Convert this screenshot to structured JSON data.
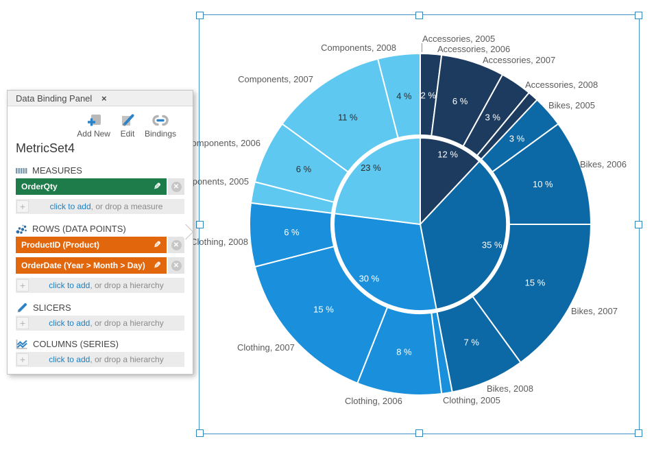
{
  "panel": {
    "title": "Data Binding Panel",
    "close_glyph": "×",
    "toolbar": [
      {
        "label": "Add New",
        "icon": "add-new-icon"
      },
      {
        "label": "Edit",
        "icon": "edit-icon"
      },
      {
        "label": "Bindings",
        "icon": "bindings-icon"
      }
    ],
    "metric_set": "MetricSet4",
    "sections": {
      "measures": {
        "label": "MEASURES",
        "icon": "measures-icon",
        "chips": [
          {
            "label": "OrderQty"
          }
        ],
        "add": {
          "link": "click to add",
          "rest": ", or drop a measure"
        }
      },
      "rows": {
        "label": "ROWS (DATA POINTS)",
        "icon": "scatter-dots-icon",
        "chips": [
          {
            "label": "ProductID (Product)"
          },
          {
            "label": "OrderDate (Year > Month > Day)"
          }
        ],
        "add": {
          "link": "click to add",
          "rest": ", or drop a hierarchy"
        }
      },
      "slicers": {
        "label": "SLICERS",
        "icon": "pencil-slicer-icon",
        "add": {
          "link": "click to add",
          "rest": ", or drop a hierarchy"
        }
      },
      "columns": {
        "label": "COLUMNS (SERIES)",
        "icon": "zigzag-series-icon",
        "add": {
          "link": "click to add",
          "rest": ", or drop a hierarchy"
        }
      }
    },
    "colors": {
      "measure_chip": "#1e7c4a",
      "hierarchy_chip": "#e2660c",
      "link_blue": "#1b7ec2"
    }
  },
  "chart_data": {
    "type": "pie",
    "subtype": "two-ring donut (category inner ring, category-by-year outer ring)",
    "legend": "none",
    "colors": {
      "Accessories": "#1c3b5e",
      "Bikes": "#0d68a6",
      "Clothing": "#1a90dd",
      "Components": "#5ec8f0"
    },
    "rings": {
      "inner": {
        "slices": [
          {
            "label": "Accessories",
            "pct": 12,
            "pct_label": "12 %",
            "color": "#1c3b5e",
            "text_color": "#ffffff"
          },
          {
            "label": "Bikes",
            "pct": 35,
            "pct_label": "35 %",
            "color": "#0d68a6",
            "text_color": "#ffffff"
          },
          {
            "label": "Clothing",
            "pct": 30,
            "pct_label": "30 %",
            "color": "#1a90dd",
            "text_color": "#ffffff"
          },
          {
            "label": "Components",
            "pct": 23,
            "pct_label": "23 %",
            "color": "#5ec8f0",
            "text_color": "#2d2d2d"
          }
        ]
      },
      "outer": {
        "slices": [
          {
            "label": "Accessories, 2005",
            "value": 2,
            "pct_label": "2 %",
            "color": "#1c3b5e",
            "text_color": "#ffffff"
          },
          {
            "label": "Accessories, 2006",
            "value": 6,
            "pct_label": "6 %",
            "color": "#1c3b5e",
            "text_color": "#ffffff"
          },
          {
            "label": "Accessories, 2007",
            "value": 3,
            "pct_label": "3 %",
            "color": "#1c3b5e",
            "text_color": "#ffffff"
          },
          {
            "label": "Accessories, 2008",
            "value": 1,
            "pct_label": "",
            "color": "#1c3b5e",
            "text_color": "#ffffff"
          },
          {
            "label": "Bikes, 2005",
            "value": 3,
            "pct_label": "3 %",
            "color": "#0d68a6",
            "text_color": "#ffffff"
          },
          {
            "label": "Bikes, 2006",
            "value": 10,
            "pct_label": "10 %",
            "color": "#0d68a6",
            "text_color": "#ffffff"
          },
          {
            "label": "Bikes, 2007",
            "value": 15,
            "pct_label": "15 %",
            "color": "#0d68a6",
            "text_color": "#ffffff"
          },
          {
            "label": "Bikes, 2008",
            "value": 7,
            "pct_label": "7 %",
            "color": "#0d68a6",
            "text_color": "#ffffff"
          },
          {
            "label": "Clothing, 2005",
            "value": 1,
            "pct_label": "",
            "color": "#1a90dd",
            "text_color": "#ffffff"
          },
          {
            "label": "Clothing, 2006",
            "value": 8,
            "pct_label": "8 %",
            "color": "#1a90dd",
            "text_color": "#ffffff"
          },
          {
            "label": "Clothing, 2007",
            "value": 15,
            "pct_label": "15 %",
            "color": "#1a90dd",
            "text_color": "#ffffff"
          },
          {
            "label": "Clothing, 2008",
            "value": 6,
            "pct_label": "6 %",
            "color": "#1a90dd",
            "text_color": "#ffffff"
          },
          {
            "label": "Components, 2005",
            "value": 2,
            "pct_label": "",
            "color": "#5ec8f0",
            "text_color": "#2d2d2d"
          },
          {
            "label": "Components, 2006",
            "value": 6,
            "pct_label": "6 %",
            "color": "#5ec8f0",
            "text_color": "#2d2d2d"
          },
          {
            "label": "Components, 2007",
            "value": 11,
            "pct_label": "11 %",
            "color": "#5ec8f0",
            "text_color": "#2d2d2d"
          },
          {
            "label": "Components, 2008",
            "value": 4,
            "pct_label": "4 %",
            "color": "#5ec8f0",
            "text_color": "#2d2d2d"
          }
        ]
      }
    }
  }
}
